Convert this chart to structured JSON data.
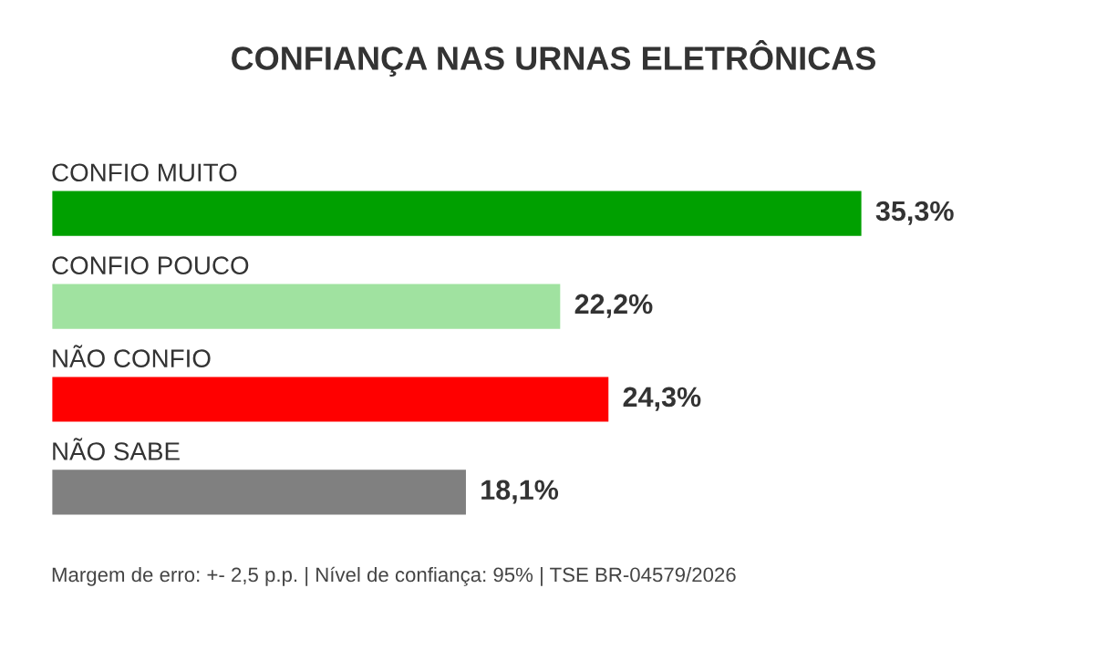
{
  "chart_data": {
    "type": "bar",
    "orientation": "horizontal",
    "title": "CONFIANÇA NAS URNAS ELETRÔNICAS",
    "categories": [
      "CONFIO MUITO",
      "CONFIO POUCO",
      "NÃO CONFIO",
      "NÃO SABE"
    ],
    "values": [
      35.3,
      22.2,
      24.3,
      18.1
    ],
    "value_labels": [
      "35,3%",
      "22,2%",
      "24,3%",
      "18,1%"
    ],
    "colors": [
      "#00a000",
      "#a0e2a0",
      "#ff0000",
      "#808080"
    ],
    "annotations": [
      "Margem de erro: +- 2,5 p.p. | Nível de confiança: 95% | TSE BR-04579/2026"
    ]
  }
}
